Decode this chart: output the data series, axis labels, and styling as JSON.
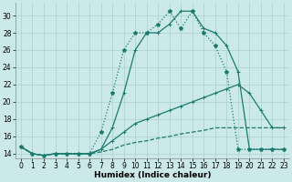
{
  "xlabel": "Humidex (Indice chaleur)",
  "xlim": [
    -0.5,
    23.5
  ],
  "ylim": [
    13.5,
    31.5
  ],
  "xticks": [
    0,
    1,
    2,
    3,
    4,
    5,
    6,
    7,
    8,
    9,
    10,
    11,
    12,
    13,
    14,
    15,
    16,
    17,
    18,
    19,
    20,
    21,
    22,
    23
  ],
  "yticks": [
    14,
    16,
    18,
    20,
    22,
    24,
    26,
    28,
    30
  ],
  "background_color": "#cce9e9",
  "grid_color": "#aacece",
  "line_color": "#1a7a6e",
  "line1": {
    "x": [
      0,
      1,
      2,
      3,
      4,
      5,
      6,
      7,
      8,
      9,
      10,
      11,
      12,
      13,
      14,
      15,
      16,
      17,
      18,
      19,
      20,
      21,
      22,
      23
    ],
    "y": [
      14.8,
      14.0,
      13.8,
      14.0,
      14.0,
      14.0,
      14.0,
      14.2,
      14.5,
      15.0,
      15.3,
      15.5,
      15.8,
      16.0,
      16.3,
      16.5,
      16.7,
      17.0,
      17.0,
      17.0,
      17.0,
      17.0,
      17.0,
      17.0
    ]
  },
  "line2": {
    "x": [
      0,
      1,
      2,
      3,
      4,
      5,
      6,
      7,
      8,
      9,
      10,
      11,
      12,
      13,
      14,
      15,
      16,
      17,
      18,
      19,
      20,
      21,
      22,
      23
    ],
    "y": [
      14.8,
      14.0,
      13.8,
      14.0,
      14.0,
      14.0,
      14.0,
      14.5,
      15.5,
      16.5,
      17.5,
      18.0,
      18.5,
      19.0,
      19.5,
      20.0,
      20.5,
      21.0,
      21.5,
      22.0,
      21.0,
      19.0,
      17.0,
      17.0
    ]
  },
  "line3": {
    "x": [
      0,
      1,
      2,
      3,
      4,
      5,
      6,
      7,
      8,
      9,
      10,
      11,
      12,
      13,
      14,
      15,
      16,
      17,
      18,
      19,
      20,
      21,
      22,
      23
    ],
    "y": [
      14.8,
      14.0,
      13.8,
      14.0,
      14.0,
      14.0,
      14.0,
      14.5,
      17.0,
      21.0,
      26.0,
      28.0,
      28.0,
      29.0,
      30.5,
      30.5,
      28.5,
      28.0,
      26.5,
      23.5,
      14.5,
      14.5,
      14.5,
      14.5
    ]
  },
  "line4": {
    "x": [
      0,
      1,
      2,
      3,
      4,
      5,
      6,
      7,
      8,
      9,
      10,
      11,
      12,
      13,
      14,
      15,
      16,
      17,
      18,
      19,
      20,
      21,
      22,
      23
    ],
    "y": [
      14.8,
      14.0,
      13.8,
      14.0,
      14.0,
      14.0,
      14.0,
      16.5,
      21.0,
      26.0,
      28.0,
      28.0,
      29.0,
      30.5,
      28.5,
      30.5,
      28.0,
      26.5,
      23.5,
      14.5,
      14.5,
      14.5,
      14.5,
      14.5
    ]
  }
}
